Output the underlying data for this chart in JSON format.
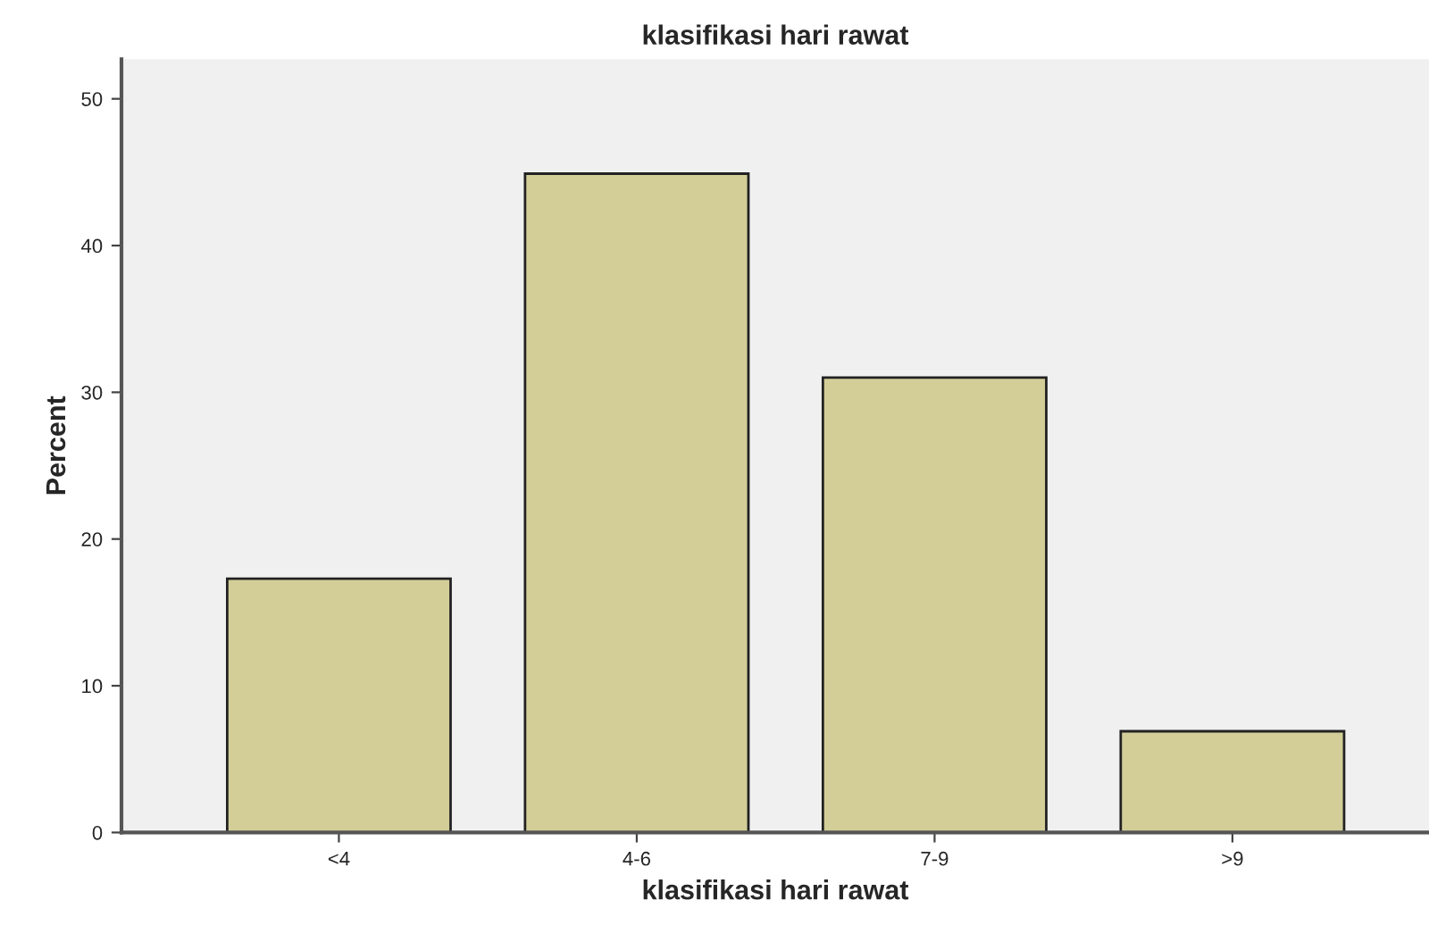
{
  "chart_data": {
    "type": "bar",
    "title": "klasifikasi hari rawat",
    "xlabel": "klasifikasi hari rawat",
    "ylabel": "Percent",
    "categories": [
      "<4",
      "4-6",
      "7-9",
      ">9"
    ],
    "values": [
      17.3,
      44.9,
      31.0,
      6.9
    ],
    "color": "#d3ce98",
    "ylim": [
      0,
      52.7
    ],
    "yticks": [
      0,
      10,
      20,
      30,
      40,
      50
    ],
    "grid": false,
    "legend": false
  }
}
